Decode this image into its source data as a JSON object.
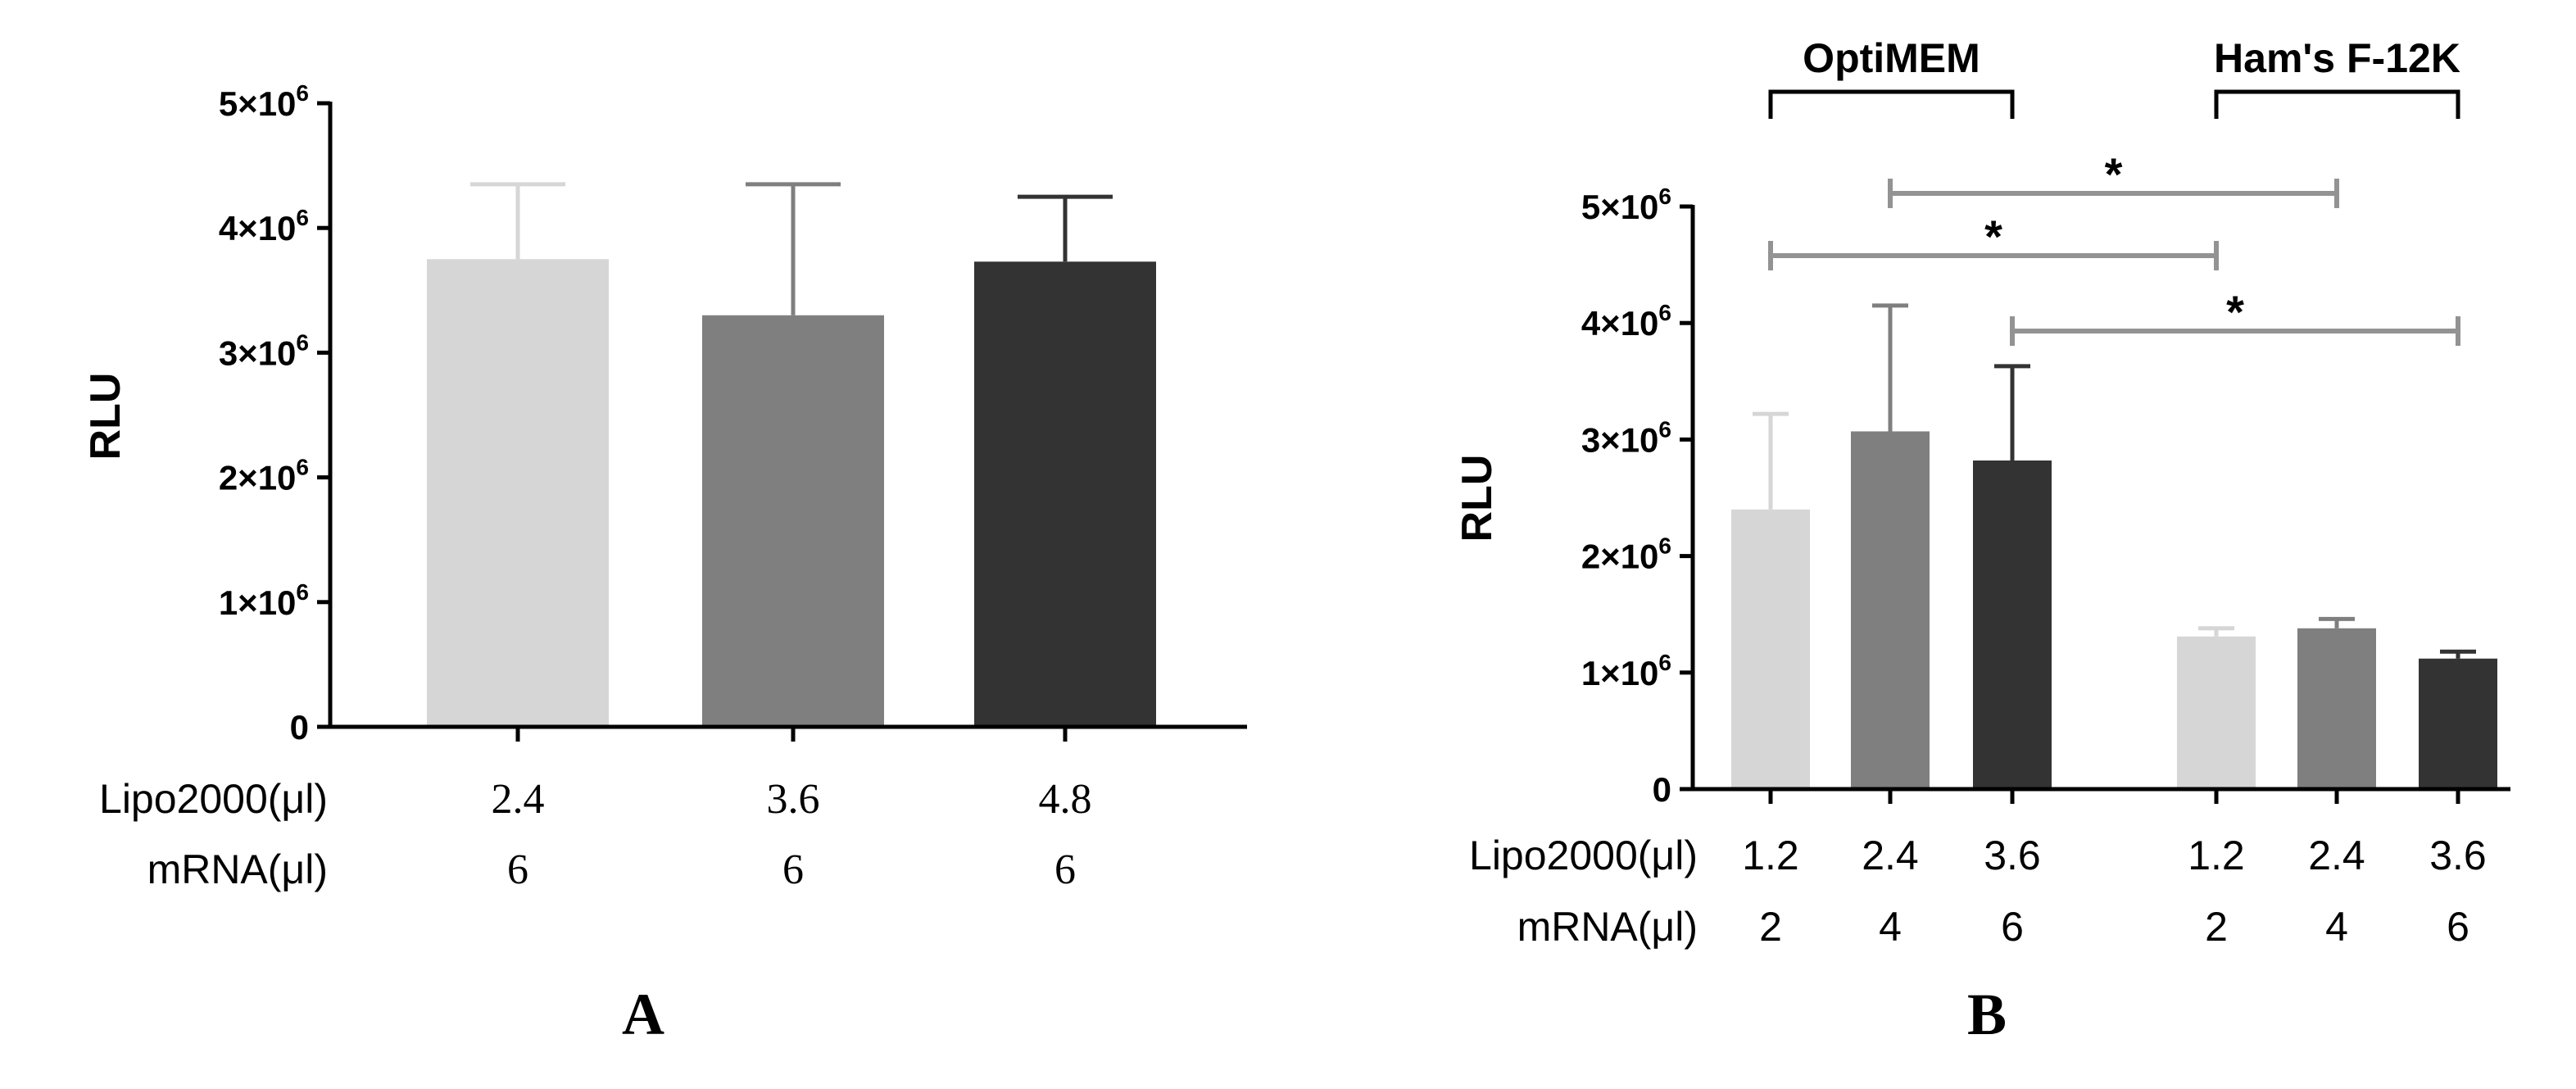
{
  "colors": {
    "light": "#d6d6d6",
    "mid": "#7f7f7f",
    "dark": "#333333",
    "axis": "#000000",
    "sig_line": "#939393"
  },
  "chart_data": [
    {
      "panel": "A",
      "type": "bar",
      "ylabel": "RLU",
      "ylim": [
        0,
        5000000
      ],
      "yticks": [
        {
          "base": "0",
          "exp": ""
        },
        {
          "base": "1×10",
          "exp": "6"
        },
        {
          "base": "2×10",
          "exp": "6"
        },
        {
          "base": "3×10",
          "exp": "6"
        },
        {
          "base": "4×10",
          "exp": "6"
        },
        {
          "base": "5×10",
          "exp": "6"
        }
      ],
      "row_labels": [
        "Lipo2000(μl)",
        "mRNA(μl)"
      ],
      "categories": [
        {
          "lipo": "2.4",
          "mrna": "6",
          "value": 3750000,
          "error": 600000,
          "color": "light"
        },
        {
          "lipo": "3.6",
          "mrna": "6",
          "value": 3300000,
          "error": 1050000,
          "color": "mid"
        },
        {
          "lipo": "4.8",
          "mrna": "6",
          "value": 3730000,
          "error": 520000,
          "color": "dark"
        }
      ]
    },
    {
      "panel": "B",
      "type": "bar",
      "ylabel": "RLU",
      "ylim": [
        0,
        5000000
      ],
      "yticks": [
        {
          "base": "0",
          "exp": ""
        },
        {
          "base": "1×10",
          "exp": "6"
        },
        {
          "base": "2×10",
          "exp": "6"
        },
        {
          "base": "3×10",
          "exp": "6"
        },
        {
          "base": "4×10",
          "exp": "6"
        },
        {
          "base": "5×10",
          "exp": "6"
        }
      ],
      "row_labels": [
        "Lipo2000(μl)",
        "mRNA(μl)"
      ],
      "groups": [
        "OptiMEM",
        "Ham's F-12K"
      ],
      "categories": [
        {
          "group": "OptiMEM",
          "lipo": "1.2",
          "mrna": "2",
          "value": 2400000,
          "error": 820000,
          "color": "light"
        },
        {
          "group": "OptiMEM",
          "lipo": "2.4",
          "mrna": "4",
          "value": 3070000,
          "error": 1080000,
          "color": "mid"
        },
        {
          "group": "OptiMEM",
          "lipo": "3.6",
          "mrna": "6",
          "value": 2820000,
          "error": 810000,
          "color": "dark"
        },
        {
          "group": "Ham's F-12K",
          "lipo": "1.2",
          "mrna": "2",
          "value": 1310000,
          "error": 70000,
          "color": "light"
        },
        {
          "group": "Ham's F-12K",
          "lipo": "2.4",
          "mrna": "4",
          "value": 1380000,
          "error": 80000,
          "color": "mid"
        },
        {
          "group": "Ham's F-12K",
          "lipo": "3.6",
          "mrna": "6",
          "value": 1120000,
          "error": 60000,
          "color": "dark"
        }
      ],
      "significance": [
        {
          "from": 1,
          "to": 4,
          "label": "*"
        },
        {
          "from": 0,
          "to": 3,
          "label": "*"
        },
        {
          "from": 2,
          "to": 5,
          "label": "*"
        }
      ]
    }
  ]
}
